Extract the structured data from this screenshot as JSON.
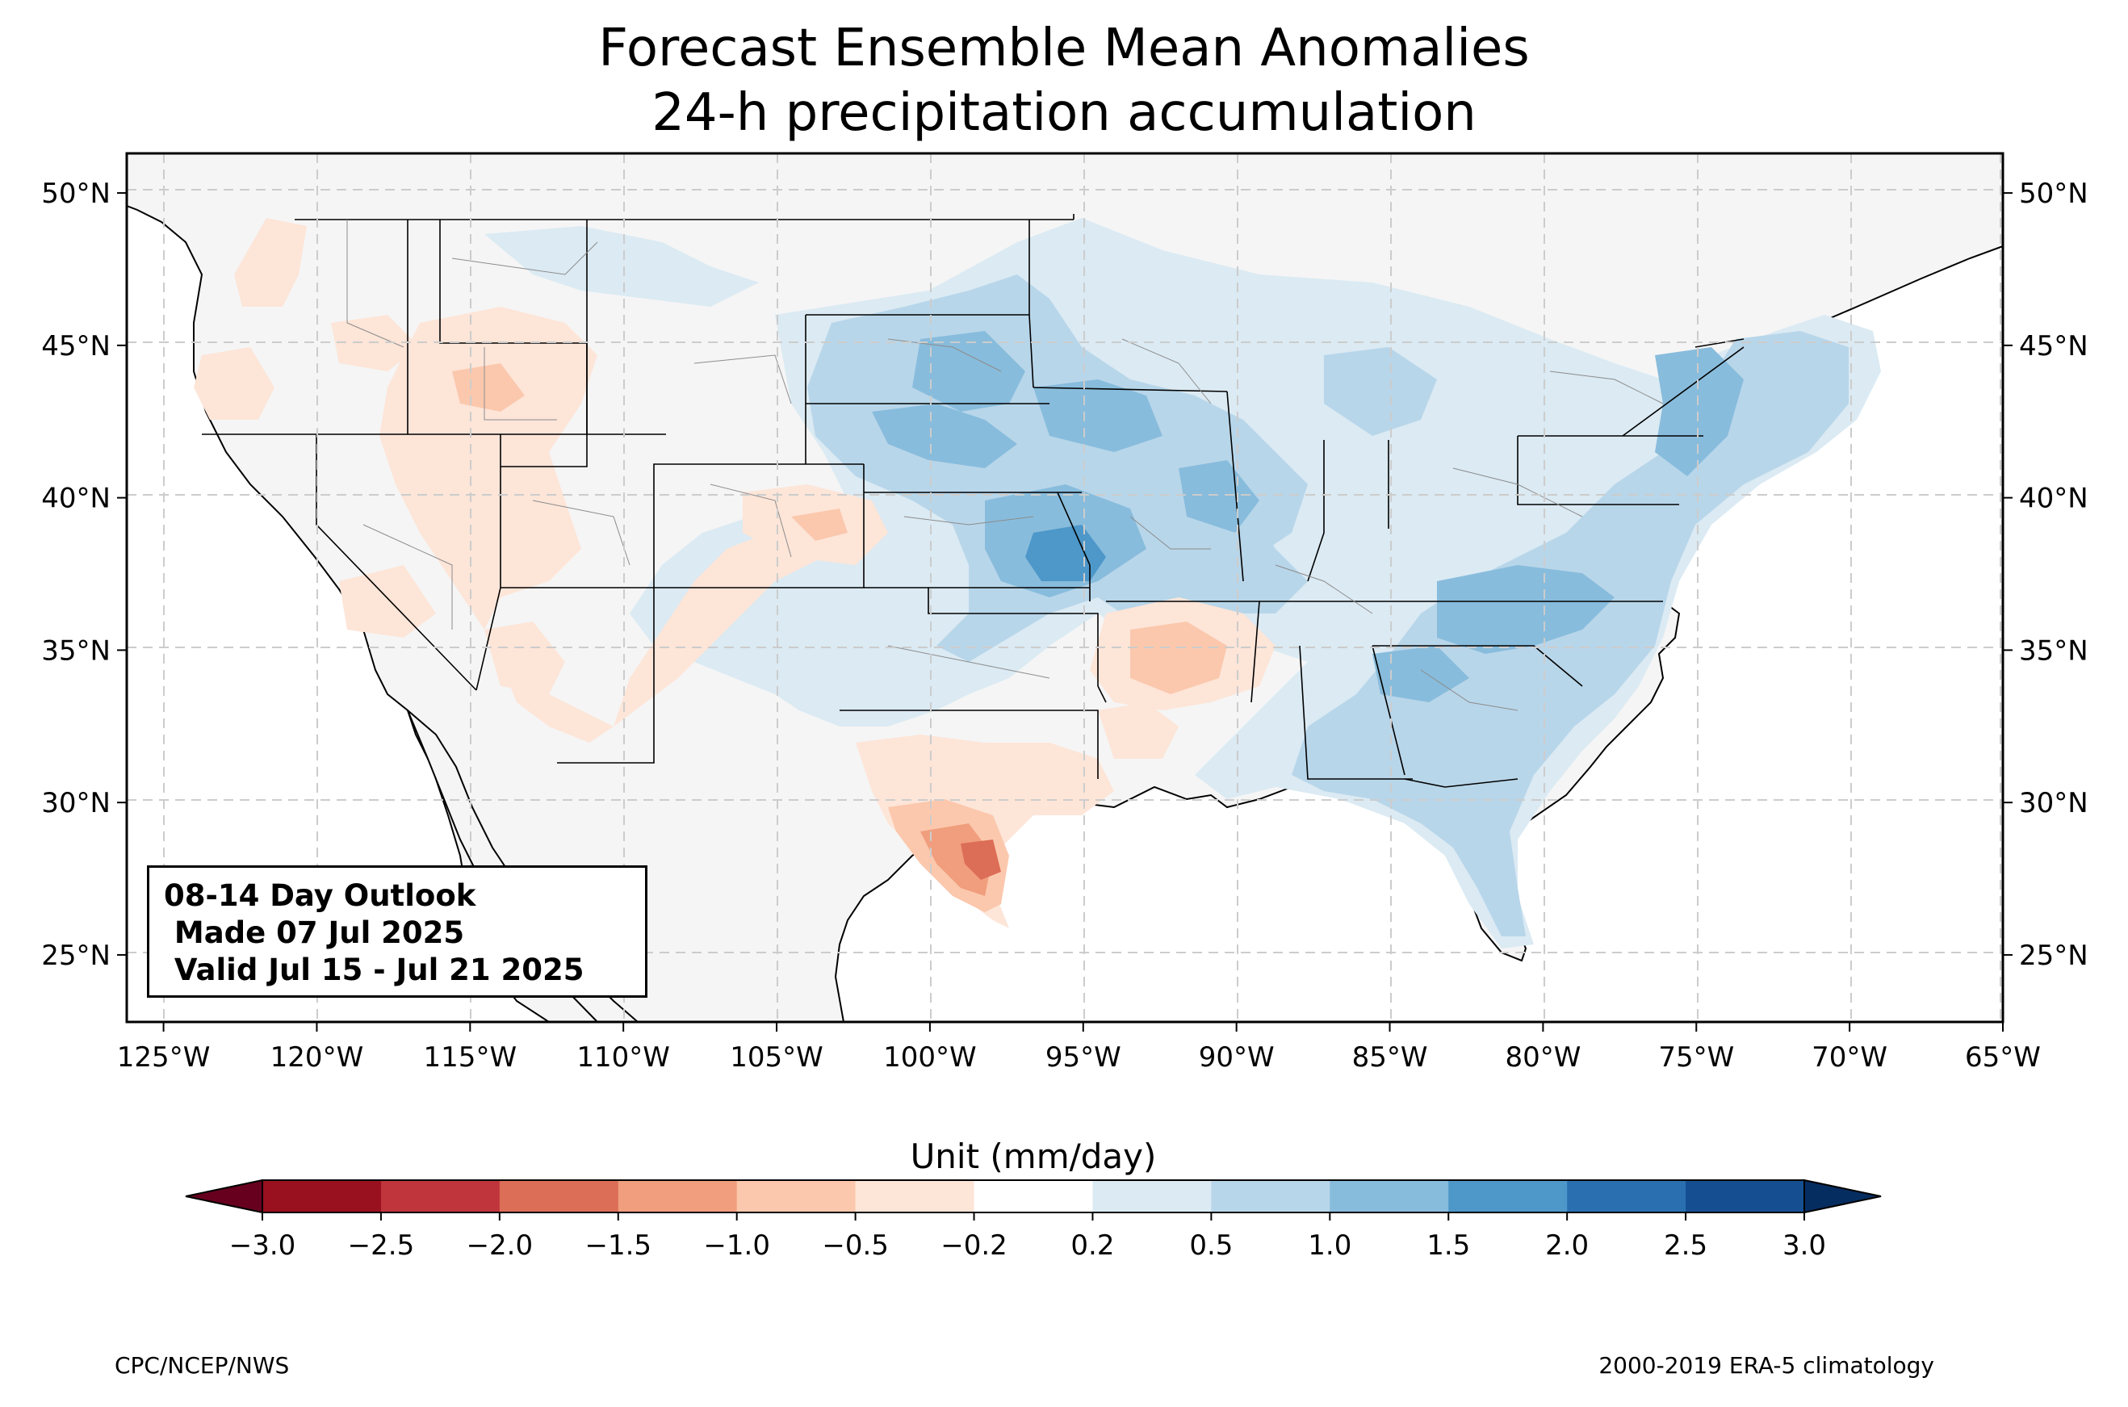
{
  "title": {
    "line1": "Forecast Ensemble Mean Anomalies",
    "line2": "24-h precipitation accumulation"
  },
  "outlook": {
    "line1": "08-14 Day Outlook",
    "line2": " Made 07 Jul 2025",
    "line3": " Valid Jul 15 - Jul 21 2025"
  },
  "axes": {
    "lon_labels": [
      "125°W",
      "120°W",
      "115°W",
      "110°W",
      "105°W",
      "100°W",
      "95°W",
      "90°W",
      "85°W",
      "80°W",
      "75°W",
      "70°W",
      "65°W"
    ],
    "lat_labels": [
      "50°N",
      "45°N",
      "40°N",
      "35°N",
      "30°N",
      "25°N"
    ],
    "lon_range": [
      -126.2,
      -65
    ],
    "lat_range": [
      22.8,
      51.3
    ]
  },
  "colorbar": {
    "title": "Unit (mm/day)",
    "levels": [
      "−3.0",
      "−2.5",
      "−2.0",
      "−1.5",
      "−1.0",
      "−0.5",
      "−0.2",
      "0.2",
      "0.5",
      "1.0",
      "1.5",
      "2.0",
      "2.5",
      "3.0"
    ],
    "colors": [
      "#99101f",
      "#c0343b",
      "#dc6d57",
      "#f09e7d",
      "#fbc8ad",
      "#fde5d8",
      "#ffffff",
      "#dbeaf3",
      "#b8d6ea",
      "#88bcdc",
      "#4d97c9",
      "#2a70b1",
      "#154f91"
    ],
    "under_color": "#67001f",
    "over_color": "#062d60"
  },
  "footer": {
    "left": "CPC/NCEP/NWS",
    "right": "2000-2019 ERA-5 climatology"
  },
  "land_color": "#f5f5f5"
}
